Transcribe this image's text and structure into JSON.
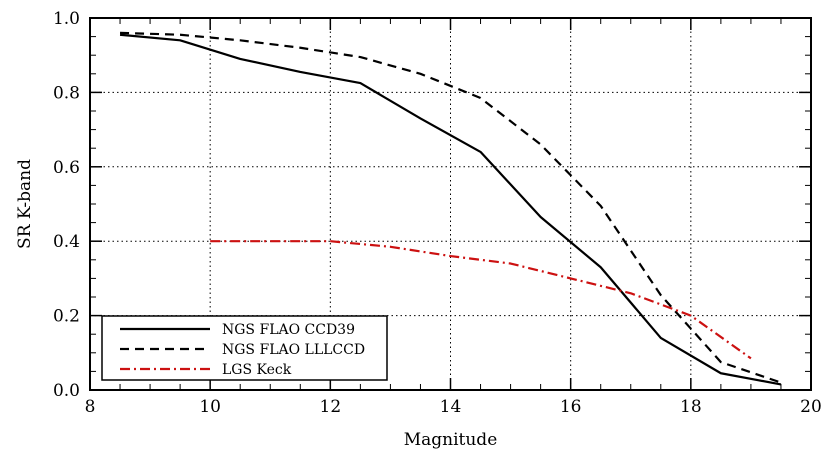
{
  "chart_data": {
    "type": "line",
    "title": "",
    "xlabel": "Magnitude",
    "ylabel": "SR K-band",
    "xlim": [
      8,
      20
    ],
    "ylim": [
      0.0,
      1.0
    ],
    "xticks": [
      8,
      10,
      12,
      14,
      16,
      18,
      20
    ],
    "xtick_labels": [
      "8",
      "10",
      "12",
      "14",
      "16",
      "18",
      "20"
    ],
    "yticks": [
      0.0,
      0.2,
      0.4,
      0.6,
      0.8,
      1.0
    ],
    "ytick_labels": [
      "0.0",
      "0.2",
      "0.4",
      "0.6",
      "0.8",
      "1.0"
    ],
    "grid": "dotted at major ticks",
    "legend_position": "bottom-left",
    "series": [
      {
        "name": "NGS FLAO CCD39",
        "style": "solid",
        "color": "#000000",
        "x": [
          8.5,
          9.5,
          10.5,
          11.5,
          12.5,
          13.5,
          14.5,
          15.5,
          16.5,
          17.5,
          18.5,
          19.5
        ],
        "y": [
          0.955,
          0.94,
          0.89,
          0.855,
          0.825,
          0.73,
          0.64,
          0.465,
          0.33,
          0.14,
          0.045,
          0.015
        ]
      },
      {
        "name": "NGS FLAO LLLCCD",
        "style": "dashed",
        "color": "#000000",
        "x": [
          8.5,
          9.5,
          10.5,
          11.5,
          12.5,
          13.5,
          14.5,
          15.5,
          16.5,
          17.5,
          18.5,
          19.5
        ],
        "y": [
          0.96,
          0.955,
          0.94,
          0.92,
          0.895,
          0.85,
          0.785,
          0.66,
          0.495,
          0.255,
          0.075,
          0.02
        ]
      },
      {
        "name": "LGS Keck",
        "style": "dash-dot",
        "color": "#cc1111",
        "x": [
          10,
          11,
          12,
          13,
          14,
          15,
          16,
          17,
          18,
          19
        ],
        "y": [
          0.4,
          0.4,
          0.4,
          0.385,
          0.36,
          0.34,
          0.3,
          0.26,
          0.2,
          0.085
        ]
      }
    ]
  }
}
